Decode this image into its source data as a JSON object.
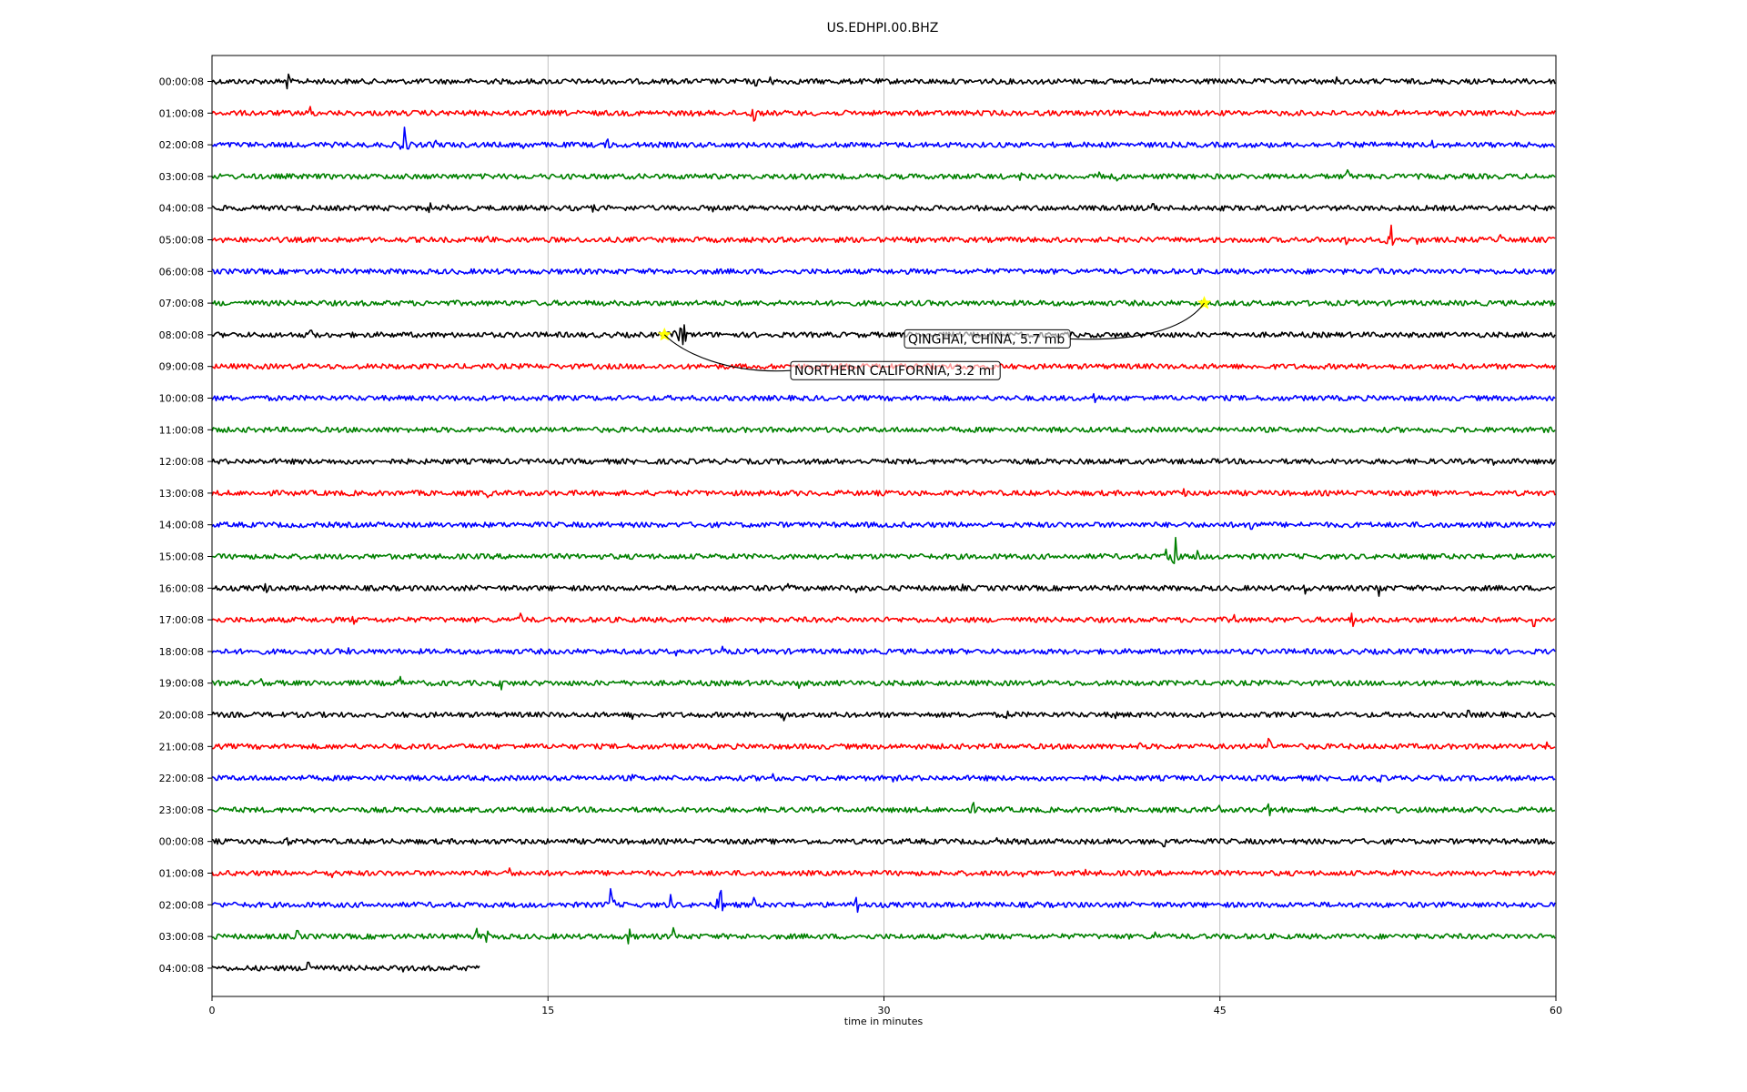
{
  "chart_data": {
    "type": "line",
    "title": "US.EDHPI.00.BHZ",
    "xlabel": "time in minutes",
    "ylabel": "",
    "xlim": [
      0,
      60
    ],
    "xticks": [
      "0",
      "15",
      "30",
      "45",
      "60"
    ],
    "grid": "vertical lines at x ticks",
    "row_colors": [
      "#000000",
      "#ff0000",
      "#0000ff",
      "#008000"
    ],
    "rows": [
      {
        "label": "00:00:08",
        "end_minute": 60,
        "events": [
          [
            3.4,
            0.5
          ],
          [
            25,
            0.55
          ],
          [
            24.3,
            0.3
          ],
          [
            36.8,
            0.35
          ],
          [
            50.2,
            0.3
          ]
        ]
      },
      {
        "label": "01:00:08",
        "end_minute": 60,
        "events": [
          [
            4.4,
            0.45
          ],
          [
            5,
            0.3
          ],
          [
            24.2,
            1.0
          ],
          [
            21.4,
            0.2
          ]
        ]
      },
      {
        "label": "02:00:08",
        "end_minute": 60,
        "events": [
          [
            8.6,
            1.2
          ],
          [
            10,
            0.3
          ],
          [
            17.7,
            0.55
          ],
          [
            13.9,
            0.25
          ],
          [
            54.5,
            0.3
          ]
        ]
      },
      {
        "label": "03:00:08",
        "end_minute": 60,
        "events": [
          [
            36.1,
            0.35
          ],
          [
            39.6,
            0.3
          ],
          [
            40.4,
            0.3
          ],
          [
            50.7,
            0.45
          ]
        ]
      },
      {
        "label": "04:00:08",
        "end_minute": 60,
        "events": [
          [
            9.7,
            0.35
          ],
          [
            10.6,
            0.4
          ],
          [
            17,
            0.35
          ],
          [
            22.4,
            0.25
          ],
          [
            42,
            0.3
          ]
        ]
      },
      {
        "label": "05:00:08",
        "end_minute": 60,
        "events": [
          [
            12.3,
            0.25
          ],
          [
            50.7,
            0.6
          ],
          [
            52.6,
            1.0
          ],
          [
            53.8,
            0.3
          ],
          [
            57.5,
            0.35
          ],
          [
            59.5,
            0.4
          ]
        ]
      },
      {
        "label": "06:00:08",
        "end_minute": 60,
        "events": [
          [
            30.4,
            0.25
          ],
          [
            52,
            0.2
          ]
        ]
      },
      {
        "label": "07:00:08",
        "end_minute": 60,
        "events": [
          [
            17.3,
            0.25
          ]
        ]
      },
      {
        "label": "08:00:08",
        "end_minute": 60,
        "events": [
          [
            21,
            1.3
          ],
          [
            20.6,
            0.4
          ],
          [
            4.4,
            0.3
          ]
        ]
      },
      {
        "label": "09:00:08",
        "end_minute": 60,
        "events": []
      },
      {
        "label": "10:00:08",
        "end_minute": 60,
        "events": [
          [
            39.4,
            0.3
          ]
        ]
      },
      {
        "label": "11:00:08",
        "end_minute": 60,
        "events": []
      },
      {
        "label": "12:00:08",
        "end_minute": 60,
        "events": [
          [
            57.2,
            0.25
          ],
          [
            38.6,
            0.2
          ]
        ]
      },
      {
        "label": "13:00:08",
        "end_minute": 60,
        "events": [
          [
            12.3,
            0.3
          ],
          [
            43.4,
            0.3
          ]
        ]
      },
      {
        "label": "14:00:08",
        "end_minute": 60,
        "events": [
          [
            46.4,
            0.3
          ]
        ]
      },
      {
        "label": "15:00:08",
        "end_minute": 60,
        "events": [
          [
            43,
            1.3
          ],
          [
            42.6,
            0.5
          ],
          [
            44,
            0.4
          ]
        ]
      },
      {
        "label": "16:00:08",
        "end_minute": 60,
        "events": [
          [
            2.4,
            0.3
          ],
          [
            25.7,
            0.35
          ],
          [
            28.8,
            0.3
          ],
          [
            33.5,
            0.3
          ],
          [
            48.8,
            0.4
          ],
          [
            52.1,
            0.55
          ]
        ]
      },
      {
        "label": "17:00:08",
        "end_minute": 60,
        "events": [
          [
            6.3,
            0.3
          ],
          [
            13.8,
            0.45
          ],
          [
            45.6,
            0.35
          ],
          [
            50.9,
            0.45
          ],
          [
            59,
            0.45
          ]
        ]
      },
      {
        "label": "18:00:08",
        "end_minute": 60,
        "events": [
          [
            6.1,
            0.25
          ],
          [
            20.7,
            0.3
          ],
          [
            22.8,
            0.35
          ],
          [
            36.5,
            0.25
          ]
        ]
      },
      {
        "label": "19:00:08",
        "end_minute": 60,
        "events": [
          [
            2.2,
            0.3
          ],
          [
            8.4,
            0.45
          ],
          [
            12.9,
            0.45
          ],
          [
            26.2,
            0.35
          ],
          [
            53.1,
            0.2
          ]
        ]
      },
      {
        "label": "20:00:08",
        "end_minute": 60,
        "events": [
          [
            18.8,
            0.3
          ],
          [
            25.5,
            0.4
          ],
          [
            35.5,
            0.25
          ],
          [
            40.3,
            0.25
          ],
          [
            56.1,
            0.3
          ]
        ]
      },
      {
        "label": "21:00:08",
        "end_minute": 60,
        "events": [
          [
            9.6,
            0.25
          ],
          [
            19.2,
            0.3
          ],
          [
            41.4,
            0.25
          ],
          [
            47.2,
            0.55
          ],
          [
            59.6,
            0.3
          ]
        ]
      },
      {
        "label": "22:00:08",
        "end_minute": 60,
        "events": [
          [
            18.8,
            0.4
          ],
          [
            25,
            0.3
          ],
          [
            30.4,
            0.25
          ],
          [
            52.1,
            0.45
          ]
        ]
      },
      {
        "label": "23:00:08",
        "end_minute": 60,
        "events": [
          [
            34,
            0.5
          ],
          [
            45,
            0.3
          ],
          [
            47.2,
            0.4
          ],
          [
            53,
            0.2
          ]
        ]
      },
      {
        "label": "00:00:08",
        "end_minute": 60,
        "events": [
          [
            3.4,
            0.25
          ],
          [
            35,
            0.25
          ],
          [
            42.5,
            0.35
          ],
          [
            54,
            0.25
          ]
        ]
      },
      {
        "label": "01:00:08",
        "end_minute": 60,
        "events": [
          [
            0.6,
            0.3
          ],
          [
            5.4,
            0.3
          ],
          [
            13.3,
            0.35
          ],
          [
            36.2,
            0.25
          ],
          [
            39,
            0.25
          ],
          [
            52.8,
            0.25
          ]
        ]
      },
      {
        "label": "02:00:08",
        "end_minute": 60,
        "events": [
          [
            17.8,
            1.1
          ],
          [
            20.5,
            0.7
          ],
          [
            22.7,
            1.3
          ],
          [
            24.2,
            0.5
          ],
          [
            28.8,
            0.5
          ],
          [
            36.8,
            0.35
          ]
        ]
      },
      {
        "label": "03:00:08",
        "end_minute": 60,
        "events": [
          [
            3.8,
            0.4
          ],
          [
            11.8,
            0.55
          ],
          [
            12.3,
            0.6
          ],
          [
            18.6,
            0.5
          ],
          [
            20.6,
            0.6
          ],
          [
            42.1,
            0.3
          ],
          [
            58,
            0.3
          ]
        ]
      },
      {
        "label": "04:00:08",
        "end_minute": 12,
        "events": [
          [
            4.3,
            0.4
          ],
          [
            8.5,
            0.25
          ]
        ]
      }
    ],
    "markers": [
      {
        "row": 7,
        "minute": 44.3,
        "color": "#ffff00"
      },
      {
        "row": 8,
        "minute": 20.2,
        "color": "#ffff00"
      }
    ],
    "annotations": [
      {
        "text": "QINGHAI, CHINA, 5.7 mb",
        "row": 7,
        "minute": 44.3
      },
      {
        "text": "NORTHERN CALIFORNIA, 3.2 ml",
        "row": 8,
        "minute": 20.2
      }
    ]
  }
}
